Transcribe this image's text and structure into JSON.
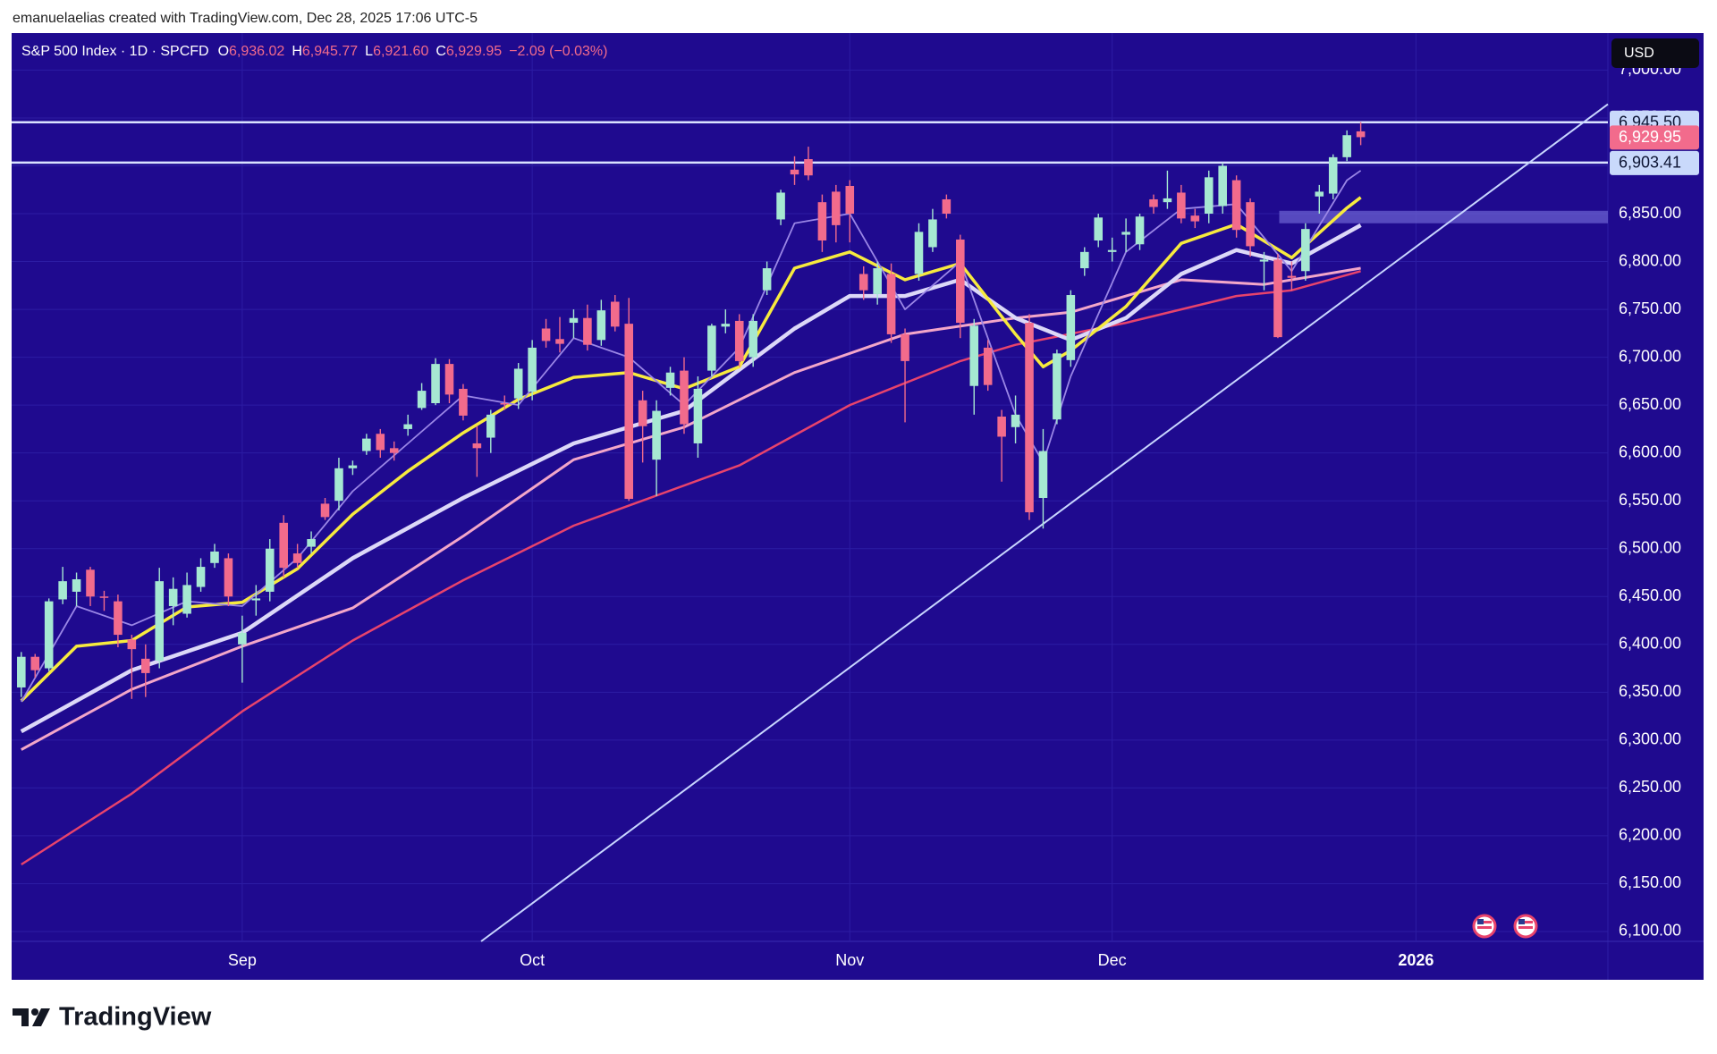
{
  "attribution": "emanuelaelias created with TradingView.com, Dec 28, 2025 17:06 UTC-5",
  "brand": "TradingView",
  "chart_data": {
    "type": "candlestick",
    "title": "S&P 500 Index · 1D · SPCFD",
    "ohlc_header": [
      {
        "key": "O",
        "value": "6,936.02"
      },
      {
        "key": "H",
        "value": "6,945.77"
      },
      {
        "key": "L",
        "value": "6,921.60"
      },
      {
        "key": "C",
        "value": "6,929.95"
      }
    ],
    "change": "−2.09 (−0.03%)",
    "currency": "USD",
    "xlim": [
      -0.7,
      114.9
    ],
    "xticks": [
      {
        "value": 16,
        "label": "Sep"
      },
      {
        "value": 37,
        "label": "Oct"
      },
      {
        "value": 60,
        "label": "Nov"
      },
      {
        "value": 79,
        "label": "Dec"
      },
      {
        "value": 101,
        "label": "2026"
      }
    ],
    "ylim": [
      6089.7,
      7038.7
    ],
    "yticks": [
      {
        "value": 6100,
        "label": "6,100.00"
      },
      {
        "value": 6150,
        "label": "6,150.00"
      },
      {
        "value": 6200,
        "label": "6,200.00"
      },
      {
        "value": 6250,
        "label": "6,250.00"
      },
      {
        "value": 6300,
        "label": "6,300.00"
      },
      {
        "value": 6350,
        "label": "6,350.00"
      },
      {
        "value": 6400,
        "label": "6,400.00"
      },
      {
        "value": 6450,
        "label": "6,450.00"
      },
      {
        "value": 6500,
        "label": "6,500.00"
      },
      {
        "value": 6550,
        "label": "6,550.00"
      },
      {
        "value": 6600,
        "label": "6,600.00"
      },
      {
        "value": 6650,
        "label": "6,650.00"
      },
      {
        "value": 6700,
        "label": "6,700.00"
      },
      {
        "value": 6750,
        "label": "6,750.00"
      },
      {
        "value": 6800,
        "label": "6,800.00"
      },
      {
        "value": 6850,
        "label": "6,850.00"
      },
      {
        "value": 6900,
        "label": "6,900.00"
      },
      {
        "value": 6950,
        "label": "6,950.00"
      },
      {
        "value": 7000,
        "label": "7,000.00"
      }
    ],
    "grid": true,
    "up_color": "#a6e8d2",
    "down_color": "#f26b8c",
    "open": [
      6355,
      6387,
      6375,
      6447,
      6455,
      6478,
      6450,
      6445,
      6405,
      6385,
      6383,
      6440,
      6432,
      6460,
      6485,
      6490,
      6400,
      6446,
      6455,
      6527,
      6495,
      6502,
      6547,
      6550,
      6584,
      6602,
      6620,
      6605,
      6625,
      6647,
      6652,
      6693,
      6667,
      6610,
      6616,
      6652,
      6657,
      6664,
      6730,
      6719,
      6736,
      6741,
      6718,
      6758,
      6735,
      6655,
      6593,
      6668,
      6686,
      6610,
      6686,
      6732,
      6738,
      6700,
      6770,
      6844,
      6896,
      6907,
      6862,
      6873,
      6879,
      6787,
      6766,
      6787,
      6724,
      6787,
      6815,
      6865,
      6823,
      6670,
      6710,
      6638,
      6627,
      6736,
      6553,
      6635,
      6697,
      6793,
      6822,
      6810,
      6828,
      6818,
      6865,
      6862,
      6872,
      6848,
      6850,
      6858,
      6885,
      6862,
      6800,
      6802,
      6785,
      6790,
      6868,
      6871,
      6909,
      6936.02
    ],
    "high": [
      6392,
      6390,
      6448,
      6481,
      6475,
      6481,
      6456,
      6452,
      6410,
      6400,
      6480,
      6470,
      6475,
      6490,
      6505,
      6495,
      6430,
      6462,
      6510,
      6535,
      6505,
      6518,
      6553,
      6595,
      6592,
      6620,
      6625,
      6612,
      6640,
      6673,
      6699,
      6698,
      6672,
      6628,
      6645,
      6660,
      6694,
      6718,
      6740,
      6742,
      6750,
      6755,
      6760,
      6765,
      6762,
      6665,
      6655,
      6690,
      6700,
      6680,
      6735,
      6750,
      6745,
      6745,
      6800,
      6875,
      6910,
      6920,
      6870,
      6880,
      6885,
      6795,
      6800,
      6798,
      6730,
      6840,
      6855,
      6870,
      6828,
      6740,
      6718,
      6645,
      6660,
      6745,
      6625,
      6708,
      6770,
      6815,
      6850,
      6825,
      6845,
      6850,
      6870,
      6895,
      6880,
      6855,
      6895,
      6903,
      6890,
      6866,
      6810,
      6808,
      6800,
      6840,
      6880,
      6912,
      6937,
      6945.77
    ],
    "low": [
      6345,
      6365,
      6372,
      6442,
      6440,
      6440,
      6435,
      6397,
      6343,
      6345,
      6375,
      6420,
      6428,
      6455,
      6480,
      6440,
      6360,
      6430,
      6445,
      6470,
      6480,
      6495,
      6530,
      6540,
      6577,
      6598,
      6595,
      6592,
      6618,
      6645,
      6650,
      6652,
      6634,
      6575,
      6600,
      6645,
      6646,
      6655,
      6710,
      6705,
      6720,
      6707,
      6712,
      6727,
      6550,
      6590,
      6555,
      6660,
      6620,
      6595,
      6680,
      6725,
      6690,
      6690,
      6765,
      6838,
      6880,
      6885,
      6810,
      6820,
      6820,
      6760,
      6755,
      6715,
      6632,
      6780,
      6810,
      6845,
      6720,
      6640,
      6665,
      6570,
      6610,
      6530,
      6521,
      6630,
      6690,
      6785,
      6815,
      6800,
      6810,
      6812,
      6850,
      6855,
      6840,
      6835,
      6840,
      6850,
      6825,
      6805,
      6770,
      6720,
      6770,
      6780,
      6850,
      6865,
      6905,
      6921.6
    ],
    "close": [
      6387,
      6373,
      6445,
      6466,
      6468,
      6450,
      6449,
      6410,
      6395,
      6370,
      6466,
      6458,
      6462,
      6481,
      6497,
      6450,
      6412,
      6448,
      6500,
      6480,
      6485,
      6510,
      6533,
      6584,
      6587,
      6615,
      6603,
      6600,
      6630,
      6665,
      6693,
      6661,
      6639,
      6605,
      6640,
      6651,
      6688,
      6710,
      6717,
      6714,
      6741,
      6713,
      6749,
      6732,
      6552,
      6628,
      6644,
      6684,
      6630,
      6667,
      6733,
      6735,
      6696,
      6738,
      6793,
      6872,
      6891,
      6890,
      6822,
      6838,
      6850,
      6770,
      6793,
      6724,
      6696,
      6831,
      6844,
      6850,
      6736,
      6733,
      6671,
      6617,
      6640,
      6538,
      6602,
      6704,
      6765,
      6810,
      6846,
      6812,
      6831,
      6847,
      6857,
      6866,
      6845,
      6842,
      6888,
      6900,
      6833,
      6816,
      6802,
      6721,
      6783,
      6834,
      6873,
      6909,
      6932,
      6929.95
    ],
    "lines": [
      {
        "color": "#e8436c",
        "width": 2.5,
        "x": [
          0,
          8,
          16,
          24,
          32,
          40,
          44,
          52,
          60,
          68,
          72,
          80,
          88,
          92,
          97
        ],
        "values": [
          6170,
          6244,
          6330,
          6404,
          6467,
          6524,
          6545,
          6587,
          6650,
          6696,
          6713,
          6736,
          6764,
          6770,
          6790
        ]
      },
      {
        "color": "#f3a6c9",
        "width": 3,
        "x": [
          0,
          8,
          16,
          24,
          32,
          40,
          48,
          56,
          64,
          72,
          76,
          84,
          90,
          97
        ],
        "values": [
          6290,
          6353,
          6398,
          6438,
          6513,
          6593,
          6627,
          6684,
          6724,
          6741,
          6747,
          6781,
          6776,
          6793
        ]
      },
      {
        "color": "#dcd8f8",
        "width": 4.5,
        "x": [
          0,
          8,
          16,
          24,
          32,
          40,
          48,
          56,
          60,
          64,
          68,
          72,
          76,
          80,
          84,
          88,
          92,
          97
        ],
        "values": [
          6309,
          6373,
          6412,
          6490,
          6553,
          6610,
          6644,
          6730,
          6764,
          6764,
          6781,
          6741,
          6718,
          6741,
          6787,
          6812,
          6798,
          6838
        ]
      },
      {
        "color": "#f7ea3e",
        "width": 3.5,
        "x": [
          0,
          4,
          8,
          12,
          16,
          20,
          24,
          28,
          32,
          36,
          40,
          44,
          48,
          52,
          56,
          60,
          64,
          68,
          72,
          74,
          76,
          80,
          84,
          88,
          92,
          96,
          97
        ],
        "values": [
          6341,
          6398,
          6404,
          6439,
          6444,
          6479,
          6536,
          6581,
          6621,
          6656,
          6679,
          6684,
          6667,
          6690,
          6793,
          6810,
          6781,
          6798,
          6724,
          6690,
          6707,
          6753,
          6819,
          6839,
          6804,
          6856,
          6867
        ]
      },
      {
        "color": "#9a86e6",
        "width": 1.8,
        "x": [
          0,
          4,
          8,
          12,
          16,
          20,
          24,
          28,
          32,
          36,
          40,
          44,
          48,
          52,
          56,
          60,
          64,
          68,
          72,
          74,
          76,
          80,
          84,
          88,
          92,
          96,
          97
        ],
        "values": [
          6340,
          6440,
          6420,
          6445,
          6440,
          6490,
          6560,
          6610,
          6660,
          6650,
          6720,
          6700,
          6650,
          6710,
          6840,
          6850,
          6750,
          6800,
          6640,
          6590,
          6680,
          6810,
          6855,
          6860,
          6790,
          6885,
          6895
        ]
      }
    ],
    "hlines": [
      {
        "value": 6945.5,
        "label": "6,945.50",
        "color": "#d9e2ff"
      },
      {
        "value": 6903.41,
        "label": "6,903.41",
        "color": "#d9e2ff"
      }
    ],
    "last_price": {
      "value": 6929.95,
      "label": "6,929.95"
    },
    "trendline": {
      "x": [
        33.3,
        114.9
      ],
      "y": [
        6089.7,
        6964.4
      ],
      "color": "#c8d6ff"
    },
    "zone": {
      "x": [
        91.1,
        114.9
      ],
      "y": [
        6840,
        6853
      ],
      "color": "#6a5fcf"
    }
  }
}
